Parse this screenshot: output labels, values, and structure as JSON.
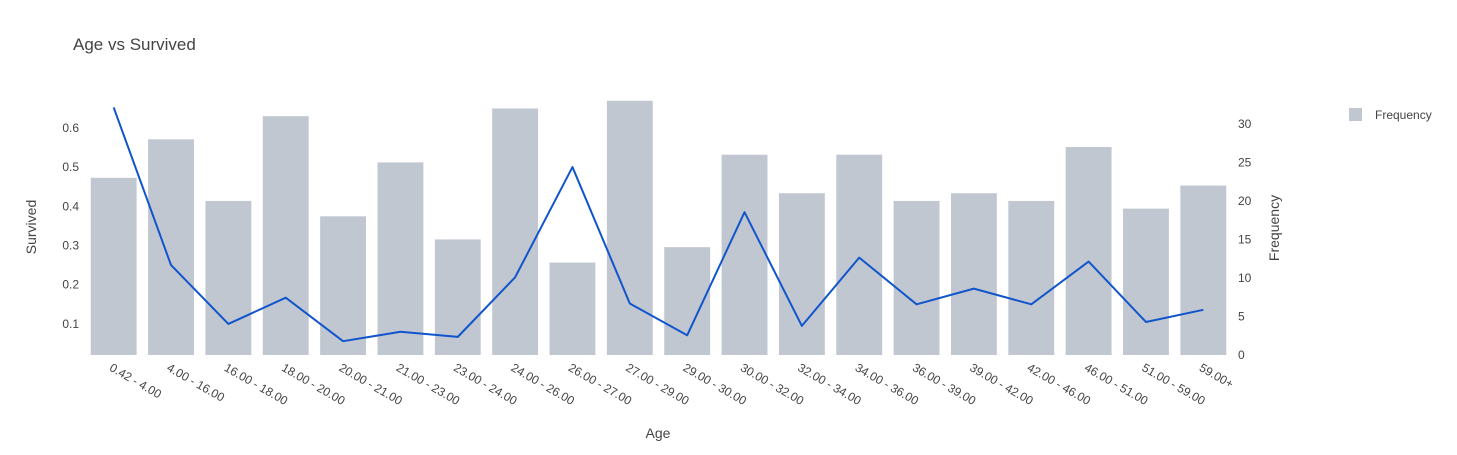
{
  "chart_data": {
    "type": "bar",
    "title": "Age vs Survived",
    "xlabel": "Age",
    "ylabel_left": "Survived",
    "ylabel_right": "Frequency",
    "categories": [
      "0.42 - 4.00",
      "4.00 - 16.00",
      "16.00 - 18.00",
      "18.00 - 20.00",
      "20.00 - 21.00",
      "21.00 - 23.00",
      "23.00 - 24.00",
      "24.00 - 26.00",
      "26.00 - 27.00",
      "27.00 - 29.00",
      "29.00 - 30.00",
      "30.00 - 32.00",
      "32.00 - 34.00",
      "34.00 - 36.00",
      "36.00 - 39.00",
      "39.00 - 42.00",
      "42.00 - 46.00",
      "46.00 - 51.00",
      "51.00 - 59.00",
      "59.00+"
    ],
    "series": [
      {
        "name": "Frequency",
        "type": "bar",
        "axis": "right",
        "color": "#c1c7d1",
        "values": [
          23,
          28,
          20,
          31,
          18,
          25,
          15,
          32,
          12,
          33,
          14,
          26,
          21,
          26,
          20,
          21,
          20,
          27,
          19,
          22
        ]
      },
      {
        "type": "line",
        "axis": "left",
        "color": "#1155cc",
        "values": [
          0.652,
          0.25,
          0.1,
          0.167,
          0.056,
          0.08,
          0.067,
          0.219,
          0.5,
          0.152,
          0.071,
          0.385,
          0.095,
          0.269,
          0.15,
          0.19,
          0.15,
          0.259,
          0.105,
          0.136
        ]
      }
    ],
    "ylim_left": [
      0.0208,
      0.671
    ],
    "yticks_left": [
      "0.1",
      "0.2",
      "0.3",
      "0.4",
      "0.5",
      "0.6"
    ],
    "ylim_right": [
      0,
      33.1
    ],
    "yticks_right": [
      "0",
      "5",
      "10",
      "15",
      "20",
      "25",
      "30"
    ],
    "grid": false,
    "legend": {
      "position": "top-right",
      "entries": [
        "Frequency"
      ]
    }
  }
}
